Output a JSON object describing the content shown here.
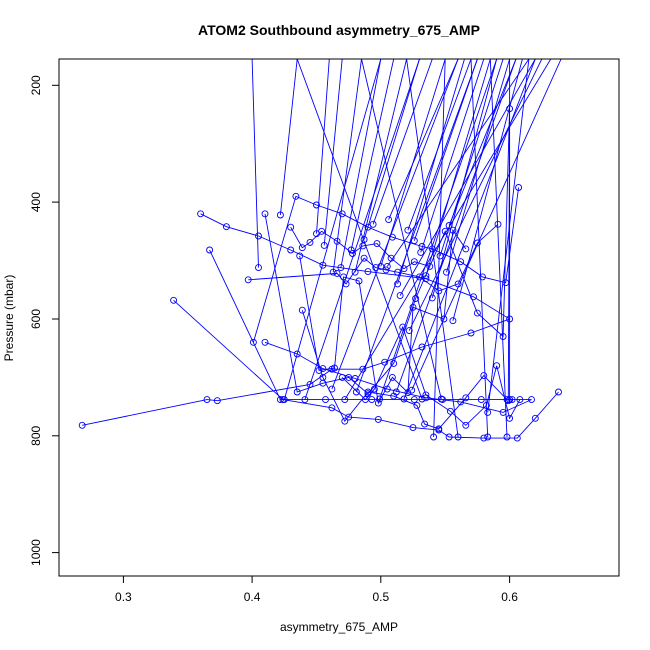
{
  "chart_data": {
    "type": "line",
    "title": "ATOM2 Southbound asymmetry_675_AMP",
    "xlabel": "asymmetry_675_AMP",
    "ylabel": "Pressure (mbar)",
    "xlim": [
      0.25,
      0.685
    ],
    "ylim": [
      1040,
      155
    ],
    "y_reversed": true,
    "x_ticks": [
      0.3,
      0.4,
      0.5,
      0.6
    ],
    "y_ticks": [
      200,
      400,
      600,
      800,
      1000
    ],
    "grid": false,
    "legend": "none",
    "color": "#0000ff",
    "series": [
      {
        "x": [
          0.268,
          0.365,
          0.373,
          0.445,
          0.462,
          0.486,
          0.503,
          0.532,
          0.57,
          0.6,
          0.572,
          0.535,
          0.49,
          0.455,
          0.43,
          0.405,
          0.38,
          0.36
        ],
        "y": [
          782,
          738,
          740,
          712,
          686,
          686,
          674,
          648,
          624,
          600,
          562,
          531,
          519,
          508,
          482,
          458,
          442,
          420
        ]
      },
      {
        "x": [
          0.339,
          0.424,
          0.462,
          0.475,
          0.498,
          0.525,
          0.545,
          0.553,
          0.58,
          0.606,
          0.62,
          0.638
        ],
        "y": [
          568,
          738,
          752,
          768,
          772,
          786,
          790,
          802,
          804,
          804,
          770,
          725
        ]
      },
      {
        "x": [
          0.367,
          0.422,
          0.457,
          0.493,
          0.526,
          0.548,
          0.578,
          0.6,
          0.617,
          0.595,
          0.562,
          0.535,
          0.505,
          0.48,
          0.455,
          0.435,
          0.41
        ],
        "y": [
          482,
          738,
          738,
          738,
          738,
          738,
          738,
          738,
          738,
          760,
          742,
          735,
          720,
          702,
          685,
          660,
          640
        ]
      },
      {
        "x": [
          0.401,
          0.434,
          0.45,
          0.47,
          0.49,
          0.509,
          0.532,
          0.54,
          0.562,
          0.579,
          0.597,
          0.607
        ],
        "y": [
          640,
          390,
          405,
          420,
          443,
          460,
          476,
          480,
          502,
          528,
          538,
          375
        ]
      },
      {
        "x": [
          0.397,
          0.466,
          0.473,
          0.487,
          0.496,
          0.504,
          0.513,
          0.53,
          0.545,
          0.56,
          0.575,
          0.591
        ],
        "y": [
          533,
          522,
          540,
          496,
          512,
          516,
          520,
          528,
          552,
          540,
          470,
          438
        ]
      },
      {
        "x": [
          0.43,
          0.439,
          0.445,
          0.454,
          0.466,
          0.478,
          0.486,
          0.497,
          0.508,
          0.518,
          0.526,
          0.538
        ],
        "y": [
          443,
          478,
          469,
          450,
          467,
          488,
          475,
          471,
          496,
          514,
          502,
          510
        ]
      },
      {
        "x": [
          0.437,
          0.452,
          0.464,
          0.471,
          0.483,
          0.498,
          0.509,
          0.521,
          0.525,
          0.549,
          0.556,
          0.566
        ],
        "y": [
          492,
          688,
          684,
          528,
          535,
          744,
          700,
          726,
          580,
          600,
          448,
          480
        ]
      },
      {
        "x": [
          0.439,
          0.455,
          0.472,
          0.49,
          0.51,
          0.528,
          0.534,
          0.545,
          0.566,
          0.58,
          0.598,
          0.602
        ],
        "y": [
          585,
          700,
          775,
          725,
          732,
          748,
          780,
          788,
          735,
          697,
          738,
          738
        ]
      },
      {
        "x": [
          0.41,
          0.435,
          0.455,
          0.475,
          0.49,
          0.51,
          0.527,
          0.55,
          0.575,
          0.595,
          0.6,
          0.599
        ],
        "y": [
          420,
          725,
          710,
          700,
          728,
          676,
          565,
          450,
          590,
          630,
          240,
          740
        ]
      },
      {
        "x": [
          0.47,
          0.488,
          0.495,
          0.517,
          0.535,
          0.554,
          0.566,
          0.582,
          0.59,
          0.6,
          0.608
        ],
        "y": [
          700,
          738,
          720,
          614,
          730,
          758,
          782,
          748,
          680,
          770,
          738
        ]
      }
    ],
    "top_endpoints": [
      [
        0.4,
        155
      ],
      [
        0.435,
        155
      ],
      [
        0.46,
        155
      ],
      [
        0.47,
        155
      ],
      [
        0.485,
        155
      ],
      [
        0.5,
        155
      ],
      [
        0.51,
        155
      ],
      [
        0.52,
        155
      ],
      [
        0.53,
        155
      ],
      [
        0.54,
        155
      ],
      [
        0.55,
        155
      ],
      [
        0.56,
        155
      ],
      [
        0.565,
        155
      ],
      [
        0.57,
        155
      ],
      [
        0.575,
        155
      ],
      [
        0.58,
        155
      ],
      [
        0.585,
        155
      ],
      [
        0.59,
        155
      ],
      [
        0.595,
        155
      ],
      [
        0.6,
        155
      ],
      [
        0.605,
        155
      ],
      [
        0.61,
        155
      ],
      [
        0.615,
        155
      ],
      [
        0.62,
        155
      ],
      [
        0.625,
        155
      ],
      [
        0.632,
        155
      ],
      [
        0.64,
        155
      ],
      [
        0.648,
        155
      ]
    ],
    "low_points": [
      [
        0.405,
        512
      ],
      [
        0.422,
        422
      ],
      [
        0.45,
        454
      ],
      [
        0.456,
        474
      ],
      [
        0.463,
        520
      ],
      [
        0.469,
        512
      ],
      [
        0.477,
        482
      ],
      [
        0.48,
        520
      ],
      [
        0.487,
        464
      ],
      [
        0.494,
        438
      ],
      [
        0.5,
        510
      ],
      [
        0.506,
        430
      ],
      [
        0.513,
        540
      ],
      [
        0.521,
        448
      ],
      [
        0.526,
        466
      ],
      [
        0.531,
        486
      ],
      [
        0.535,
        526
      ],
      [
        0.54,
        564
      ],
      [
        0.546,
        492
      ],
      [
        0.551,
        520
      ],
      [
        0.553,
        440
      ],
      [
        0.556,
        603
      ],
      [
        0.505,
        510
      ],
      [
        0.515,
        560
      ],
      [
        0.522,
        620
      ]
    ],
    "bottom_points": [
      [
        0.425,
        738
      ],
      [
        0.441,
        738
      ],
      [
        0.462,
        720
      ],
      [
        0.481,
        725
      ],
      [
        0.499,
        737
      ],
      [
        0.512,
        725
      ],
      [
        0.518,
        737
      ],
      [
        0.524,
        722
      ],
      [
        0.532,
        737
      ],
      [
        0.547,
        737
      ],
      [
        0.56,
        802
      ],
      [
        0.541,
        802
      ],
      [
        0.583,
        802
      ],
      [
        0.598,
        802
      ],
      [
        0.6,
        738
      ],
      [
        0.583,
        760
      ],
      [
        0.472,
        738
      ]
    ]
  }
}
